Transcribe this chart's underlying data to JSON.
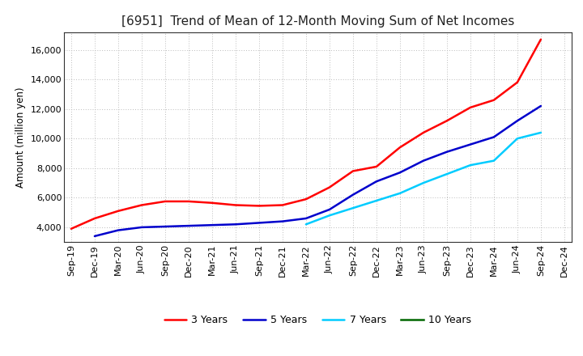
{
  "title": "[6951]  Trend of Mean of 12-Month Moving Sum of Net Incomes",
  "ylabel": "Amount (million yen)",
  "background_color": "#ffffff",
  "grid_color": "#bbbbbb",
  "x_labels": [
    "Sep-19",
    "Dec-19",
    "Mar-20",
    "Jun-20",
    "Sep-20",
    "Dec-20",
    "Mar-21",
    "Jun-21",
    "Sep-21",
    "Dec-21",
    "Mar-22",
    "Jun-22",
    "Sep-22",
    "Dec-22",
    "Mar-23",
    "Jun-23",
    "Sep-23",
    "Dec-23",
    "Mar-24",
    "Jun-24",
    "Sep-24",
    "Dec-24"
  ],
  "series": [
    {
      "label": "3 Years",
      "color": "#ff0000",
      "data_x": [
        0,
        1,
        2,
        3,
        4,
        5,
        6,
        7,
        8,
        9,
        10,
        11,
        12,
        13,
        14,
        15,
        16,
        17,
        18,
        19,
        20
      ],
      "data_y": [
        3900,
        4600,
        5100,
        5500,
        5750,
        5750,
        5650,
        5500,
        5450,
        5500,
        5900,
        6700,
        7800,
        8100,
        9400,
        10400,
        11200,
        12100,
        12600,
        13800,
        16700
      ]
    },
    {
      "label": "5 Years",
      "color": "#0000cc",
      "data_x": [
        1,
        2,
        3,
        4,
        5,
        6,
        7,
        8,
        9,
        10,
        11,
        12,
        13,
        14,
        15,
        16,
        17,
        18,
        19,
        20
      ],
      "data_y": [
        3400,
        3800,
        4000,
        4050,
        4100,
        4150,
        4200,
        4300,
        4400,
        4600,
        5200,
        6200,
        7100,
        7700,
        8500,
        9100,
        9600,
        10100,
        11200,
        12200
      ]
    },
    {
      "label": "7 Years",
      "color": "#00ccff",
      "data_x": [
        10,
        11,
        12,
        13,
        14,
        15,
        16,
        17,
        18,
        19,
        20
      ],
      "data_y": [
        4200,
        4800,
        5300,
        5800,
        6300,
        7000,
        7600,
        8200,
        8500,
        10000,
        10400
      ]
    },
    {
      "label": "10 Years",
      "color": "#006600",
      "data_x": [],
      "data_y": []
    }
  ],
  "ylim": [
    3000,
    17200
  ],
  "yticks": [
    4000,
    6000,
    8000,
    10000,
    12000,
    14000,
    16000
  ],
  "line_width": 1.8,
  "title_fontsize": 11,
  "legend_fontsize": 9,
  "tick_fontsize": 8
}
